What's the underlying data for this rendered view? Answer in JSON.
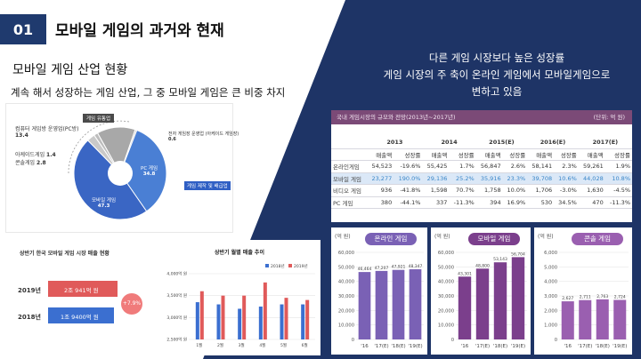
{
  "header": {
    "slide_number": "01",
    "title": "모바일 게임의 과거와 현재"
  },
  "subtitle": "모바일 게임 산업 현황",
  "description": "계속 해서 성장하는 게임 산업, 그 중 모바일 게임은 큰 비중 차지",
  "headline": {
    "line1": "다른 게임 시장보다 높은 성장률",
    "line2": "게임 시장의 주 축이 온라인 게임에서 모바일게임으로",
    "line3": "변하고 있음"
  },
  "pie": {
    "center_label": "게임 유통업",
    "callout": "게임 제작 및 배급업",
    "slices": [
      {
        "label": "PC 게임",
        "value": "34.8",
        "share": 34.8,
        "color": "#4a7fd4"
      },
      {
        "label": "모바일 게임",
        "value": "47.3",
        "share": 47.3,
        "color": "#3a66c4"
      },
      {
        "label": "콘솔게임",
        "value": "2.8",
        "share": 2.8,
        "color": "#c9c9c9"
      },
      {
        "label": "아케이드게임",
        "value": "1.4",
        "share": 1.4,
        "color": "#bdbdbd"
      },
      {
        "label": "컴퓨터 게임방 운영업(PC방)",
        "value": "13.4",
        "share": 13.4,
        "color": "#a8a8a8"
      },
      {
        "label": "전자 게임장 운영업 (아케이드 게임장)",
        "value": "0.6",
        "share": 0.6,
        "color": "#d6d6d6"
      }
    ]
  },
  "half_sales": {
    "title": "상반기 한국 모바일 게임 시장 매출 현황",
    "rows": [
      {
        "year": "2019년",
        "value": "2조 941억 원",
        "amount": 20941,
        "color": "#e05a5a"
      },
      {
        "year": "2018년",
        "value": "1조 9400억 원",
        "amount": 19400,
        "color": "#3b6fd0"
      }
    ],
    "growth": "+7.9%"
  },
  "monthly": {
    "title": "상반기 월별 매출 추이",
    "legend": [
      "2018년",
      "2019년"
    ],
    "chart_data": {
      "type": "bar",
      "categories": [
        "1월",
        "2월",
        "3월",
        "4월",
        "5월",
        "6월"
      ],
      "series": [
        {
          "name": "2018년",
          "values": [
            3350,
            3300,
            3200,
            3250,
            3300,
            3300
          ],
          "color": "#3b6fd0"
        },
        {
          "name": "2019년",
          "values": [
            3600,
            3500,
            3500,
            3800,
            3450,
            3400
          ],
          "color": "#e05a5a"
        }
      ],
      "ylim": [
        2500,
        4000
      ],
      "ticks": [
        "4,000억 원",
        "3,500억 원",
        "3,000억 원",
        "2,500억 원"
      ]
    }
  },
  "table": {
    "title": "국내 게임시장의 규모와 전망(2013년~2017년)",
    "unit": "(단위: 억 원)",
    "years": [
      "2013",
      "2014",
      "2015(E)",
      "2016(E)",
      "2017(E)"
    ],
    "sub_headers": [
      "매출액",
      "성장률"
    ],
    "rows": [
      {
        "name": "온라인게임",
        "cells": [
          "54,523",
          "-19.6%",
          "55,425",
          "1.7%",
          "56,847",
          "2.6%",
          "58,141",
          "2.3%",
          "59,261",
          "1.9%"
        ],
        "highlight": false
      },
      {
        "name": "모바일 게임",
        "cells": [
          "23,277",
          "190.0%",
          "29,136",
          "25.2%",
          "35,916",
          "23.3%",
          "39,708",
          "10.6%",
          "44,028",
          "10.8%"
        ],
        "highlight": true
      },
      {
        "name": "비디오 게임",
        "cells": [
          "936",
          "-41.8%",
          "1,598",
          "70.7%",
          "1,758",
          "10.0%",
          "1,706",
          "-3.0%",
          "1,630",
          "-4.5%"
        ],
        "highlight": false
      },
      {
        "name": "PC 게임",
        "cells": [
          "380",
          "-44.1%",
          "337",
          "-11.3%",
          "394",
          "16.9%",
          "530",
          "34.5%",
          "470",
          "-11.3%"
        ],
        "highlight": false
      }
    ]
  },
  "bar_charts": [
    {
      "chip": "온라인 게임",
      "unit": "(억 원)",
      "chart_data": {
        "type": "bar",
        "categories": [
          "'16",
          "'17(E)",
          "'18(E)",
          "'19(E)"
        ],
        "values": [
          46464,
          47207,
          47921,
          48347
        ],
        "labels": [
          "46,464",
          "47,207",
          "47,921",
          "48,347"
        ],
        "ylim": [
          0,
          60000
        ],
        "ticks": [
          "60,000",
          "50,000",
          "40,000",
          "30,000",
          "20,000",
          "10,000",
          "0"
        ]
      }
    },
    {
      "chip": "모바일 게임",
      "unit": "(억 원)",
      "chart_data": {
        "type": "bar",
        "categories": [
          "'16",
          "'17(E)",
          "'18(E)",
          "'19(E)"
        ],
        "values": [
          43301,
          48800,
          53143,
          56704
        ],
        "labels": [
          "43,301",
          "48,800",
          "53,143",
          "56,704"
        ],
        "ylim": [
          0,
          60000
        ],
        "ticks": [
          "60,000",
          "50,000",
          "40,000",
          "30,000",
          "20,000",
          "10,000",
          "0"
        ]
      }
    },
    {
      "chip": "콘솔 게임",
      "unit": "(억 원)",
      "chart_data": {
        "type": "bar",
        "categories": [
          "'16",
          "'17(E)",
          "'18(E)",
          "'19(E)"
        ],
        "values": [
          2627,
          2711,
          2763,
          2724
        ],
        "labels": [
          "2,627",
          "2,711",
          "2,763",
          "2,724"
        ],
        "ylim": [
          0,
          6000
        ],
        "ticks": [
          "6,000",
          "5,000",
          "4,000",
          "3,000",
          "2,000",
          "1,000",
          "0"
        ]
      }
    }
  ]
}
